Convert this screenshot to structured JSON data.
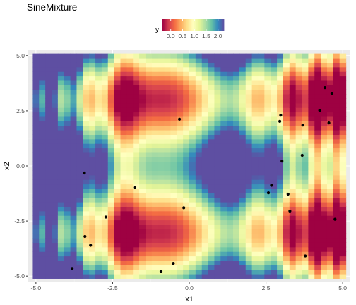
{
  "chart_data": {
    "type": "heatmap",
    "title": "SineMixture",
    "xlabel": "x1",
    "ylabel": "x2",
    "xlim": [
      -5.25,
      5.25
    ],
    "ylim": [
      -5.25,
      5.25
    ],
    "x_ticks": [
      -5.0,
      -2.5,
      0.0,
      2.5,
      5.0
    ],
    "x_tick_labels": [
      "-5.0",
      "-2.5",
      "0.0",
      "2.5",
      "5.0"
    ],
    "y_ticks": [
      -5.0,
      -2.5,
      0.0,
      2.5,
      5.0
    ],
    "y_tick_labels": [
      "-5.0",
      "-2.5",
      "0.0",
      "2.5",
      "5.0"
    ],
    "grid": true,
    "fill_variable": "y",
    "fill_range": [
      -0.35,
      2.25
    ],
    "palette": [
      "#9E0142",
      "#D53E4F",
      "#F46D43",
      "#FDAE61",
      "#FEE08B",
      "#FFFFBF",
      "#E6F598",
      "#ABDDA4",
      "#66C2A5",
      "#3288BD",
      "#5E4FA2"
    ],
    "legend": {
      "title": "y",
      "position": "top",
      "breaks": [
        0.0,
        0.5,
        1.0,
        1.5,
        2.0
      ],
      "labels": [
        "0.0",
        "0.5",
        "1.0",
        "1.5",
        "2.0"
      ]
    },
    "points": [
      {
        "x1": -3.82,
        "x2": -4.65
      },
      {
        "x1": -3.42,
        "x2": -0.32
      },
      {
        "x1": -3.22,
        "x2": -3.6
      },
      {
        "x1": -3.4,
        "x2": -3.2
      },
      {
        "x1": -2.72,
        "x2": -2.32
      },
      {
        "x1": -1.78,
        "x2": -0.98
      },
      {
        "x1": -0.92,
        "x2": -4.78
      },
      {
        "x1": -0.52,
        "x2": -4.42
      },
      {
        "x1": -0.32,
        "x2": 2.12
      },
      {
        "x1": -0.18,
        "x2": -1.9
      },
      {
        "x1": 2.58,
        "x2": -1.22
      },
      {
        "x1": 2.68,
        "x2": -0.88
      },
      {
        "x1": 2.95,
        "x2": 2.02
      },
      {
        "x1": 2.98,
        "x2": 2.3
      },
      {
        "x1": 3.02,
        "x2": 0.22
      },
      {
        "x1": 3.22,
        "x2": -1.28
      },
      {
        "x1": 3.28,
        "x2": -2.05
      },
      {
        "x1": 3.68,
        "x2": 0.48
      },
      {
        "x1": 3.7,
        "x2": 1.85
      },
      {
        "x1": 3.78,
        "x2": -4.08
      },
      {
        "x1": 4.25,
        "x2": 2.52
      },
      {
        "x1": 4.42,
        "x2": 3.55
      },
      {
        "x1": 4.55,
        "x2": 1.95
      },
      {
        "x1": 4.65,
        "x2": 3.28
      },
      {
        "x1": 4.75,
        "x2": -2.42
      }
    ]
  }
}
